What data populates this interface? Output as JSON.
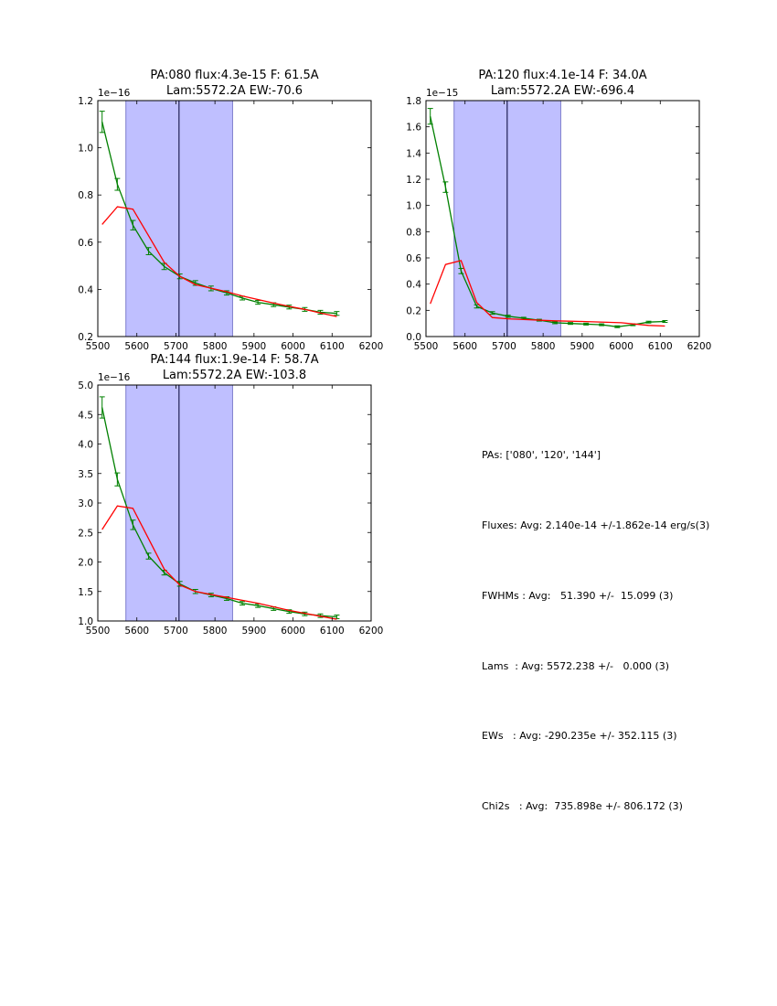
{
  "colors": {
    "fit_line": "#ff0000",
    "data_line": "#008000",
    "band_fill": "#bfbfff",
    "band_edge": "#6060c0",
    "center_line": "#000033"
  },
  "chart_data": [
    {
      "type": "line",
      "title": [
        "PA:080 flux:4.3e-15 F: 61.5A",
        "Lam:5572.2A EW:-70.6"
      ],
      "xlim": [
        5500,
        6200
      ],
      "ylim": [
        0.2,
        1.2
      ],
      "xticks": [
        5500,
        5600,
        5700,
        5800,
        5900,
        6000,
        6100,
        6200
      ],
      "yticks": [
        0.2,
        0.4,
        0.6,
        0.8,
        1.0,
        1.2
      ],
      "ytick_labels": [
        "0.2",
        "0.4",
        "0.6",
        "0.8",
        "1.0",
        "1.2"
      ],
      "offset_label": "1e−16",
      "band": [
        5572,
        5845
      ],
      "center": 5708,
      "series": [
        {
          "name": "data",
          "x": [
            5511,
            5550,
            5590,
            5630,
            5670,
            5710,
            5750,
            5790,
            5830,
            5870,
            5910,
            5950,
            5990,
            6030,
            6070,
            6112
          ],
          "values": [
            1.11,
            0.845,
            0.672,
            0.562,
            0.497,
            0.455,
            0.427,
            0.404,
            0.385,
            0.363,
            0.345,
            0.335,
            0.325,
            0.315,
            0.303,
            0.298
          ],
          "errors": [
            0.045,
            0.025,
            0.02,
            0.015,
            0.013,
            0.01,
            0.01,
            0.01,
            0.009,
            0.008,
            0.008,
            0.008,
            0.008,
            0.008,
            0.008,
            0.008
          ]
        },
        {
          "name": "fit",
          "x": [
            5511,
            5550,
            5590,
            5670,
            5710,
            5750,
            5790,
            5830,
            5870,
            5910,
            5950,
            5990,
            6030,
            6070,
            6112
          ],
          "values": [
            0.675,
            0.75,
            0.74,
            0.515,
            0.455,
            0.42,
            0.405,
            0.39,
            0.372,
            0.357,
            0.342,
            0.328,
            0.315,
            0.3,
            0.285
          ]
        }
      ]
    },
    {
      "type": "line",
      "title": [
        "PA:120 flux:4.1e-14 F: 34.0A",
        "Lam:5572.2A EW:-696.4"
      ],
      "xlim": [
        5500,
        6200
      ],
      "ylim": [
        0.0,
        1.8
      ],
      "xticks": [
        5500,
        5600,
        5700,
        5800,
        5900,
        6000,
        6100,
        6200
      ],
      "yticks": [
        0.0,
        0.2,
        0.4,
        0.6,
        0.8,
        1.0,
        1.2,
        1.4,
        1.6,
        1.8
      ],
      "ytick_labels": [
        "0.0",
        "0.2",
        "0.4",
        "0.6",
        "0.8",
        "1.0",
        "1.2",
        "1.4",
        "1.6",
        "1.8"
      ],
      "offset_label": "1e−15",
      "band": [
        5572,
        5845
      ],
      "center": 5708,
      "series": [
        {
          "name": "data",
          "x": [
            5511,
            5550,
            5590,
            5630,
            5670,
            5710,
            5750,
            5790,
            5830,
            5870,
            5910,
            5950,
            5990,
            6030,
            6070,
            6112
          ],
          "values": [
            1.68,
            1.14,
            0.5,
            0.23,
            0.18,
            0.155,
            0.14,
            0.125,
            0.105,
            0.1,
            0.095,
            0.09,
            0.075,
            0.09,
            0.11,
            0.115
          ],
          "errors": [
            0.06,
            0.04,
            0.02,
            0.012,
            0.01,
            0.008,
            0.007,
            0.007,
            0.007,
            0.007,
            0.007,
            0.007,
            0.007,
            0.007,
            0.007,
            0.007
          ]
        },
        {
          "name": "fit",
          "x": [
            5511,
            5550,
            5590,
            5630,
            5670,
            5710,
            5750,
            5830,
            5900,
            6000,
            6070,
            6112
          ],
          "values": [
            0.25,
            0.55,
            0.58,
            0.26,
            0.145,
            0.135,
            0.13,
            0.12,
            0.115,
            0.105,
            0.085,
            0.08
          ]
        }
      ]
    },
    {
      "type": "line",
      "title": [
        "PA:144 flux:1.9e-14 F: 58.7A",
        "Lam:5572.2A EW:-103.8"
      ],
      "xlim": [
        5500,
        6200
      ],
      "ylim": [
        1.0,
        5.0
      ],
      "xticks": [
        5500,
        5600,
        5700,
        5800,
        5900,
        6000,
        6100,
        6200
      ],
      "yticks": [
        1.0,
        1.5,
        2.0,
        2.5,
        3.0,
        3.5,
        4.0,
        4.5,
        5.0
      ],
      "ytick_labels": [
        "1.0",
        "1.5",
        "2.0",
        "2.5",
        "3.0",
        "3.5",
        "4.0",
        "4.5",
        "5.0"
      ],
      "offset_label": "1e−16",
      "band": [
        5572,
        5845
      ],
      "center": 5708,
      "series": [
        {
          "name": "data",
          "x": [
            5511,
            5550,
            5590,
            5630,
            5670,
            5710,
            5750,
            5790,
            5830,
            5870,
            5910,
            5950,
            5990,
            6030,
            6070,
            6112
          ],
          "values": [
            4.62,
            3.4,
            2.63,
            2.1,
            1.82,
            1.63,
            1.5,
            1.44,
            1.38,
            1.3,
            1.26,
            1.21,
            1.16,
            1.12,
            1.09,
            1.07
          ],
          "errors": [
            0.18,
            0.11,
            0.08,
            0.05,
            0.04,
            0.04,
            0.035,
            0.03,
            0.03,
            0.03,
            0.03,
            0.03,
            0.03,
            0.03,
            0.03,
            0.03
          ]
        },
        {
          "name": "fit",
          "x": [
            5511,
            5550,
            5590,
            5670,
            5710,
            5750,
            5790,
            5830,
            5870,
            5910,
            5950,
            5990,
            6030,
            6070,
            6112
          ],
          "values": [
            2.55,
            2.95,
            2.91,
            1.88,
            1.61,
            1.5,
            1.45,
            1.4,
            1.35,
            1.3,
            1.24,
            1.18,
            1.13,
            1.08,
            1.03
          ]
        }
      ]
    }
  ],
  "summary": [
    "PAs: ['080', '120', '144']",
    "Fluxes: Avg: 2.140e-14 +/-1.862e-14 erg/s(3)",
    "FWHMs : Avg:   51.390 +/-  15.099 (3)",
    "Lams  : Avg: 5572.238 +/-   0.000 (3)",
    "EWs   : Avg: -290.235e +/- 352.115 (3)",
    "Chi2s   : Avg:  735.898e +/- 806.172 (3)"
  ]
}
